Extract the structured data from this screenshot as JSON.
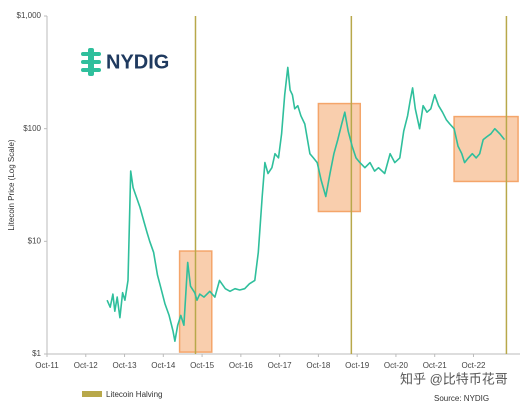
{
  "chart_data": {
    "type": "line",
    "logo": "NYDIG",
    "y_label": "Litecoin Price (Log Scale)",
    "halving_label": "Litecoin Halving",
    "source": "Source: NYDIG",
    "watermark": "知乎 @比特币花哥",
    "log_scale": true,
    "color": "#2fbf9c",
    "halving_color": "#b8a84a",
    "box_color": "#f4a56a",
    "x": [
      2013.3,
      2013.38,
      2013.45,
      2013.5,
      2013.56,
      2013.63,
      2013.7,
      2013.76,
      2013.84,
      2013.91,
      2013.97,
      2014.05,
      2014.15,
      2014.25,
      2014.33,
      2014.4,
      2014.5,
      2014.6,
      2014.66,
      2014.72,
      2014.79,
      2014.9,
      2015.0,
      2015.05,
      2015.12,
      2015.2,
      2015.28,
      2015.38,
      2015.45,
      2015.56,
      2015.62,
      2015.69,
      2015.8,
      2015.95,
      2016.08,
      2016.2,
      2016.35,
      2016.47,
      2016.6,
      2016.72,
      2016.85,
      2016.97,
      2017.11,
      2017.2,
      2017.3,
      2017.37,
      2017.45,
      2017.55,
      2017.63,
      2017.72,
      2017.8,
      2017.88,
      2017.96,
      2018.02,
      2018.08,
      2018.14,
      2018.22,
      2018.3,
      2018.4,
      2018.53,
      2018.62,
      2018.72,
      2018.82,
      2018.94,
      2019.05,
      2019.15,
      2019.25,
      2019.35,
      2019.43,
      2019.52,
      2019.62,
      2019.72,
      2019.82,
      2019.95,
      2020.08,
      2020.2,
      2020.3,
      2020.46,
      2020.6,
      2020.72,
      2020.85,
      2020.95,
      2021.05,
      2021.12,
      2021.18,
      2021.25,
      2021.36,
      2021.45,
      2021.55,
      2021.65,
      2021.75,
      2021.85,
      2021.95,
      2022.05,
      2022.14,
      2022.25,
      2022.35,
      2022.45,
      2022.52,
      2022.62,
      2022.72,
      2022.82,
      2022.91,
      2023.0,
      2023.1,
      2023.2,
      2023.3,
      2023.43,
      2023.55
    ],
    "values": [
      3,
      2.6,
      3.4,
      2.4,
      3.2,
      2.1,
      3.5,
      3,
      4.5,
      42,
      30,
      25,
      20,
      15,
      12,
      10,
      8,
      5,
      4.2,
      3.5,
      2.8,
      2.2,
      1.6,
      1.3,
      1.8,
      2.2,
      1.8,
      6.5,
      4,
      3.5,
      3,
      3.4,
      3.2,
      3.6,
      3.2,
      4.5,
      3.8,
      3.6,
      3.8,
      3.7,
      3.8,
      4.2,
      4.5,
      8,
      25,
      50,
      40,
      45,
      60,
      55,
      90,
      200,
      350,
      220,
      200,
      150,
      160,
      130,
      110,
      60,
      55,
      50,
      35,
      25,
      40,
      60,
      80,
      110,
      140,
      95,
      70,
      55,
      50,
      45,
      50,
      42,
      45,
      40,
      60,
      50,
      55,
      95,
      130,
      180,
      230,
      150,
      100,
      160,
      140,
      150,
      200,
      160,
      140,
      120,
      110,
      100,
      70,
      60,
      50,
      55,
      60,
      55,
      60,
      80,
      85,
      90,
      100,
      90,
      80
    ],
    "halvings": [
      2015.58,
      2019.6,
      2023.6
    ],
    "boxes": [
      {
        "x": [
          2015.17,
          2016.0
        ],
        "y": [
          1.04,
          8.2
        ]
      },
      {
        "x": [
          2018.75,
          2019.83
        ],
        "y": [
          18.4,
          167
        ]
      },
      {
        "x": [
          2022.25,
          2023.9
        ],
        "y": [
          34,
          128
        ]
      }
    ],
    "xlim": [
      2011.75,
      2023.95
    ],
    "xticks": [
      {
        "value": 2011.75,
        "label": "Oct-11"
      },
      {
        "value": 2012.75,
        "label": "Oct-12"
      },
      {
        "value": 2013.75,
        "label": "Oct-13"
      },
      {
        "value": 2014.75,
        "label": "Oct-14"
      },
      {
        "value": 2015.75,
        "label": "Oct-15"
      },
      {
        "value": 2016.75,
        "label": "Oct-16"
      },
      {
        "value": 2017.75,
        "label": "Oct-17"
      },
      {
        "value": 2018.75,
        "label": "Oct-18"
      },
      {
        "value": 2019.75,
        "label": "Oct-19"
      },
      {
        "value": 2020.75,
        "label": "Oct-20"
      },
      {
        "value": 2021.75,
        "label": "Oct-21"
      },
      {
        "value": 2022.75,
        "label": "Oct-22"
      }
    ],
    "ylim": [
      1,
      1000
    ],
    "yticks": [
      {
        "value": 1,
        "label": "$1"
      },
      {
        "value": 10,
        "label": "$10"
      },
      {
        "value": 100,
        "label": "$100"
      },
      {
        "value": 1000,
        "label": "$1,000"
      }
    ]
  }
}
